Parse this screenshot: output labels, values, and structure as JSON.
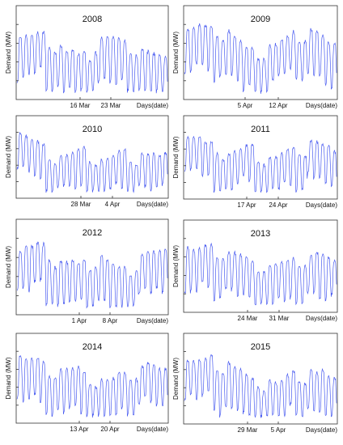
{
  "figure": {
    "line_color": "#4a5cf0",
    "axis_color": "#333333",
    "text_color": "#111111"
  },
  "chart_data": [
    {
      "type": "line",
      "title": "2008",
      "ylabel": "Demand (MW)",
      "xlabel": "Days(date)",
      "x_ticks": [
        "16 Mar",
        "23 Mar"
      ],
      "grid": false,
      "series": [
        {
          "levels": [
            0.72,
            0.8,
            0.6,
            0.52,
            0.72,
            0.7,
            0.56,
            0.48
          ],
          "values": []
        }
      ]
    },
    {
      "type": "line",
      "title": "2009",
      "ylabel": "Demand (MW)",
      "xlabel": "Days(date)",
      "x_ticks": [
        "5 Apr",
        "12 Apr"
      ],
      "grid": false,
      "series": [
        {
          "levels": [
            0.8,
            0.88,
            0.78,
            0.55,
            0.6,
            0.78,
            0.82,
            0.62
          ],
          "values": []
        }
      ]
    },
    {
      "type": "line",
      "title": "2010",
      "ylabel": "Demand (MW)",
      "xlabel": "Days(date)",
      "x_ticks": [
        "28 Mar",
        "4 Apr"
      ],
      "grid": false,
      "series": [
        {
          "levels": [
            0.86,
            0.72,
            0.52,
            0.66,
            0.5,
            0.62,
            0.56,
            0.6
          ],
          "values": []
        }
      ]
    },
    {
      "type": "line",
      "title": "2011",
      "ylabel": "Demand (MW)",
      "xlabel": "Days(date)",
      "x_ticks": [
        "17 Apr",
        "24 Apr"
      ],
      "grid": false,
      "series": [
        {
          "levels": [
            0.8,
            0.78,
            0.6,
            0.7,
            0.52,
            0.68,
            0.76,
            0.64
          ],
          "values": []
        }
      ]
    },
    {
      "type": "line",
      "title": "2012",
      "ylabel": "Demand (MW)",
      "xlabel": "Days(date)",
      "x_ticks": [
        "1 Apr",
        "8 Apr"
      ],
      "grid": false,
      "series": [
        {
          "levels": [
            0.7,
            0.86,
            0.62,
            0.58,
            0.66,
            0.5,
            0.68,
            0.74
          ],
          "values": []
        }
      ]
    },
    {
      "type": "line",
      "title": "2013",
      "ylabel": "Demand (MW)",
      "xlabel": "Days(date)",
      "x_ticks": [
        "24 Mar",
        "31 Mar"
      ],
      "grid": false,
      "series": [
        {
          "levels": [
            0.74,
            0.8,
            0.7,
            0.62,
            0.56,
            0.64,
            0.7,
            0.62
          ],
          "values": []
        }
      ]
    },
    {
      "type": "line",
      "title": "2014",
      "ylabel": "Demand (MW)",
      "xlabel": "Days(date)",
      "x_ticks": [
        "13 Apr",
        "20 Apr"
      ],
      "grid": false,
      "series": [
        {
          "levels": [
            0.8,
            0.76,
            0.64,
            0.66,
            0.5,
            0.6,
            0.72,
            0.64
          ],
          "values": []
        }
      ]
    },
    {
      "type": "line",
      "title": "2015",
      "ylabel": "Demand (MW)",
      "xlabel": "Days(date)",
      "x_ticks": [
        "29 Mar",
        "5 Apr"
      ],
      "grid": false,
      "series": [
        {
          "levels": [
            0.74,
            0.82,
            0.72,
            0.58,
            0.48,
            0.6,
            0.66,
            0.56
          ],
          "values": []
        }
      ]
    }
  ]
}
